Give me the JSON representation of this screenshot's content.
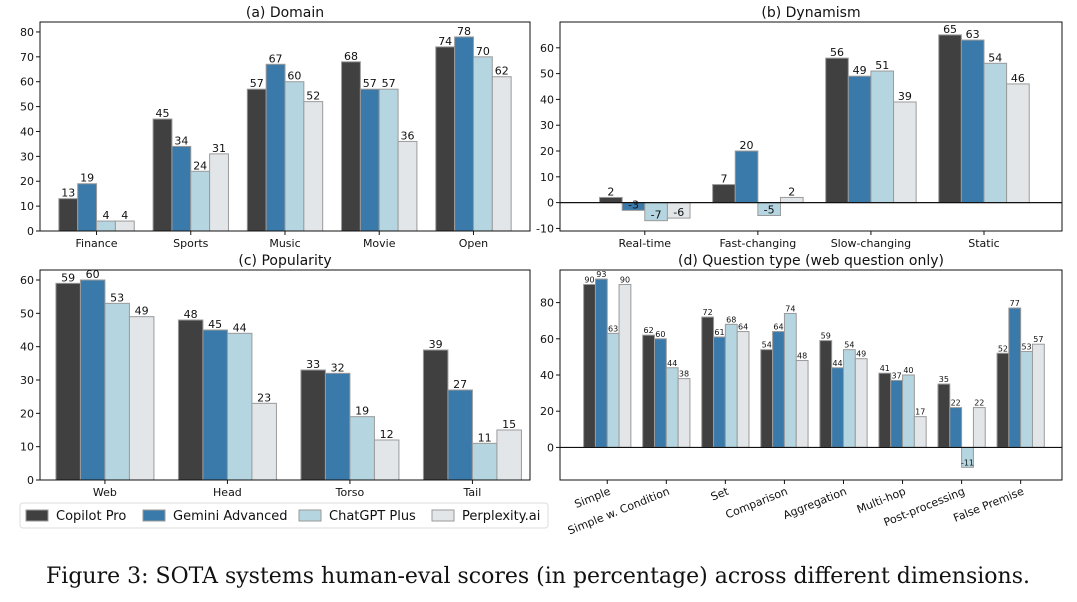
{
  "colors": {
    "Copilot Pro": "#404040",
    "Gemini Advanced": "#3a7aaa",
    "ChatGPT Plus": "#b5d6e0",
    "Perplexity.ai": "#e2e6e9",
    "edge": "#9a9a9a"
  },
  "legend": {
    "placement": "bottom-left",
    "entries": [
      "Copilot Pro",
      "Gemini Advanced",
      "ChatGPT Plus",
      "Perplexity.ai"
    ]
  },
  "caption": "Figure 3: SOTA systems human-eval scores (in percentage) across different dimensions.",
  "chart_data": [
    {
      "type": "bar",
      "title": "(a) Domain",
      "categories": [
        "Finance",
        "Sports",
        "Music",
        "Movie",
        "Open"
      ],
      "ylim": [
        0,
        84
      ],
      "yticks": [
        0,
        10,
        20,
        30,
        40,
        50,
        60,
        70,
        80
      ],
      "series": [
        {
          "name": "Copilot Pro",
          "values": [
            13,
            45,
            57,
            68,
            74
          ]
        },
        {
          "name": "Gemini Advanced",
          "values": [
            19,
            34,
            67,
            57,
            78
          ]
        },
        {
          "name": "ChatGPT Plus",
          "values": [
            4,
            24,
            60,
            57,
            70
          ]
        },
        {
          "name": "Perplexity.ai",
          "values": [
            4,
            31,
            52,
            36,
            62
          ]
        }
      ]
    },
    {
      "type": "bar",
      "title": "(b) Dynamism",
      "categories": [
        "Real-time",
        "Fast-changing",
        "Slow-changing",
        "Static"
      ],
      "ylim": [
        -11,
        70
      ],
      "yticks": [
        -10,
        0,
        10,
        20,
        30,
        40,
        50,
        60
      ],
      "series": [
        {
          "name": "Copilot Pro",
          "values": [
            2,
            7,
            56,
            65
          ]
        },
        {
          "name": "Gemini Advanced",
          "values": [
            -3,
            20,
            49,
            63
          ]
        },
        {
          "name": "ChatGPT Plus",
          "values": [
            -7,
            -5,
            51,
            54
          ]
        },
        {
          "name": "Perplexity.ai",
          "values": [
            -6,
            2,
            39,
            46
          ]
        }
      ]
    },
    {
      "type": "bar",
      "title": "(c) Popularity",
      "categories": [
        "Web",
        "Head",
        "Torso",
        "Tail"
      ],
      "ylim": [
        0,
        63
      ],
      "yticks": [
        0,
        10,
        20,
        30,
        40,
        50,
        60
      ],
      "series": [
        {
          "name": "Copilot Pro",
          "values": [
            59,
            48,
            33,
            39
          ]
        },
        {
          "name": "Gemini Advanced",
          "values": [
            60,
            45,
            32,
            27
          ]
        },
        {
          "name": "ChatGPT Plus",
          "values": [
            53,
            44,
            19,
            11
          ]
        },
        {
          "name": "Perplexity.ai",
          "values": [
            49,
            23,
            12,
            15
          ]
        }
      ]
    },
    {
      "type": "bar",
      "title": "(d) Question type (web question only)",
      "categories": [
        "Simple",
        "Simple w. Condition",
        "Set",
        "Comparison",
        "Aggregation",
        "Multi-hop",
        "Post-processing",
        "False Premise"
      ],
      "ylim": [
        -18,
        98
      ],
      "yticks": [
        0,
        20,
        40,
        60,
        80
      ],
      "series": [
        {
          "name": "Copilot Pro",
          "values": [
            90,
            62,
            72,
            54,
            59,
            41,
            35,
            52
          ]
        },
        {
          "name": "Gemini Advanced",
          "values": [
            93,
            60,
            61,
            64,
            44,
            37,
            22,
            77
          ]
        },
        {
          "name": "ChatGPT Plus",
          "values": [
            63,
            44,
            68,
            74,
            54,
            40,
            -11,
            53
          ]
        },
        {
          "name": "Perplexity.ai",
          "values": [
            90,
            38,
            64,
            48,
            49,
            17,
            22,
            57
          ]
        }
      ]
    }
  ]
}
